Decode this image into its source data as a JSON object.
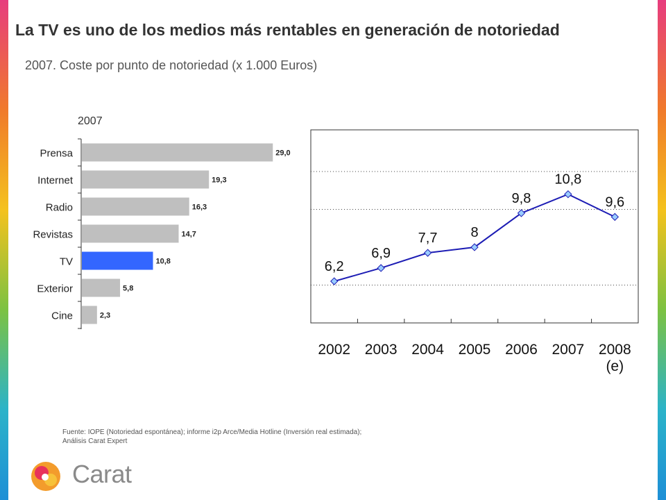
{
  "header": {
    "title": "La TV es uno de los medios más rentables en generación de notoriedad",
    "subtitle": "2007.  Coste por punto de notoriedad (x 1.000 Euros)"
  },
  "chart_data": [
    {
      "type": "bar",
      "orientation": "horizontal",
      "title": "2007",
      "categories": [
        "Prensa",
        "Internet",
        "Radio",
        "Revistas",
        "TV",
        "Exterior",
        "Cine"
      ],
      "values": [
        29.0,
        19.3,
        16.3,
        14.7,
        10.8,
        5.8,
        2.3
      ],
      "value_labels": [
        "29,0",
        "19,3",
        "16,3",
        "14,7",
        "10,8",
        "5,8",
        "2,3"
      ],
      "highlight": "TV",
      "colors": {
        "bar": "#bfbfbf",
        "highlight": "#3366ff"
      },
      "xlim": [
        0,
        29.5
      ]
    },
    {
      "type": "line",
      "title": "",
      "categories": [
        "2002",
        "2003",
        "2004",
        "2005",
        "2006",
        "2007",
        "2008"
      ],
      "category_sublabels": [
        "",
        "",
        "",
        "",
        "",
        "",
        "(e)"
      ],
      "values": [
        6.2,
        6.9,
        7.7,
        8.0,
        9.8,
        10.8,
        9.6
      ],
      "value_labels": [
        "6,2",
        "6,9",
        "7,7",
        "8",
        "9,8",
        "10,8",
        "9,6"
      ],
      "ylim": [
        4.0,
        14.2
      ],
      "gridlines": [
        6.0,
        10.0,
        12.0
      ],
      "grid": "dotted",
      "colors": {
        "line": "#1c1cb4",
        "marker": "#99ccff",
        "marker_stroke": "#1c1cb4"
      }
    }
  ],
  "footer": {
    "source_line1": "Fuente: IOPE (Notoriedad espontánea); informe i2p Arce/Media Hotline (Inversión real estimada);",
    "source_line2": "Análisis Carat Expert"
  },
  "brand": {
    "name": "Carat"
  }
}
